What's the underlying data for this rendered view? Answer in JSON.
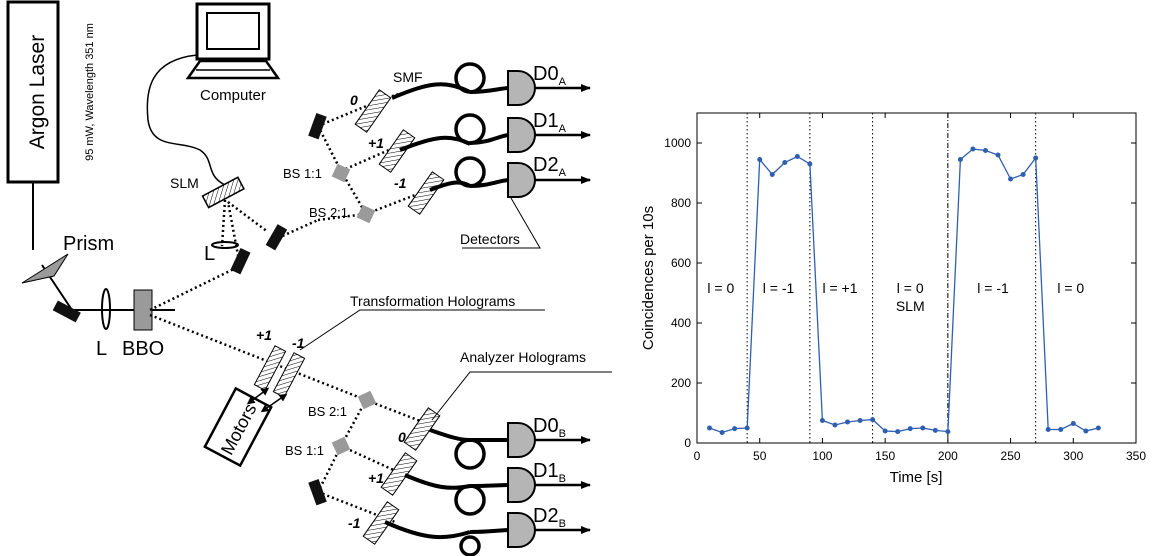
{
  "setup": {
    "laser": "Argon Laser",
    "laser_spec": "95 mW, Wavelength 351 nm",
    "computer": "Computer",
    "slm": "SLM",
    "prism": "Prism",
    "lens": "L",
    "crystal": "BBO",
    "fiber": "SMF",
    "bs_upper_1": "BS 1:1",
    "bs_upper_2": "BS 2:1",
    "bs_lower_1": "BS 2:1",
    "bs_lower_2": "BS 1:1",
    "detectors_label": "Detectors",
    "motors": "Motors",
    "transformation_holograms": "Transformation Holograms",
    "analyzer_holograms": "Analyzer Holograms",
    "hologram_orders_upper": [
      "0",
      "+1",
      "-1"
    ],
    "hologram_orders_lower": [
      "0",
      "+1",
      "-1"
    ],
    "transformation_orders": [
      "+1",
      "-1"
    ],
    "detectors_a": [
      {
        "main": "D0",
        "sub": "A"
      },
      {
        "main": "D1",
        "sub": "A"
      },
      {
        "main": "D2",
        "sub": "A"
      }
    ],
    "detectors_b": [
      {
        "main": "D0",
        "sub": "B"
      },
      {
        "main": "D1",
        "sub": "B"
      },
      {
        "main": "D2",
        "sub": "B"
      }
    ]
  },
  "chart_data": {
    "type": "line",
    "xlabel": "Time [s]",
    "ylabel": "Coincidences per 10s",
    "xlim": [
      0,
      350
    ],
    "ylim": [
      0,
      1100
    ],
    "xticks": [
      0,
      50,
      100,
      150,
      200,
      250,
      300,
      350
    ],
    "yticks": [
      0,
      200,
      400,
      600,
      800,
      1000
    ],
    "series_color": "#2f5fb0",
    "x": [
      10,
      20,
      30,
      40,
      50,
      60,
      70,
      80,
      90,
      100,
      110,
      120,
      130,
      140,
      150,
      160,
      170,
      180,
      190,
      200,
      210,
      220,
      230,
      240,
      250,
      260,
      270,
      280,
      290,
      300,
      310,
      320
    ],
    "y": [
      50,
      35,
      48,
      50,
      945,
      895,
      935,
      955,
      930,
      75,
      60,
      70,
      75,
      78,
      40,
      38,
      48,
      50,
      42,
      38,
      945,
      980,
      975,
      960,
      880,
      895,
      950,
      45,
      45,
      65,
      40,
      50
    ],
    "dividers": [
      {
        "x": 40,
        "style": "dotted"
      },
      {
        "x": 90,
        "style": "dotted"
      },
      {
        "x": 140,
        "style": "dotted"
      },
      {
        "x": 200,
        "style": "dashdot"
      },
      {
        "x": 270,
        "style": "dotted"
      }
    ],
    "region_labels": [
      {
        "text": "l = 0",
        "x": 19,
        "y": 500
      },
      {
        "text": "l = -1",
        "x": 65,
        "y": 500
      },
      {
        "text": "l = +1",
        "x": 114,
        "y": 500
      },
      {
        "text": "l = 0",
        "x": 170,
        "y": 500
      },
      {
        "text": "SLM",
        "x": 170,
        "y": 440
      },
      {
        "text": "l = -1",
        "x": 236,
        "y": 500
      },
      {
        "text": "l = 0",
        "x": 298,
        "y": 500
      }
    ]
  }
}
